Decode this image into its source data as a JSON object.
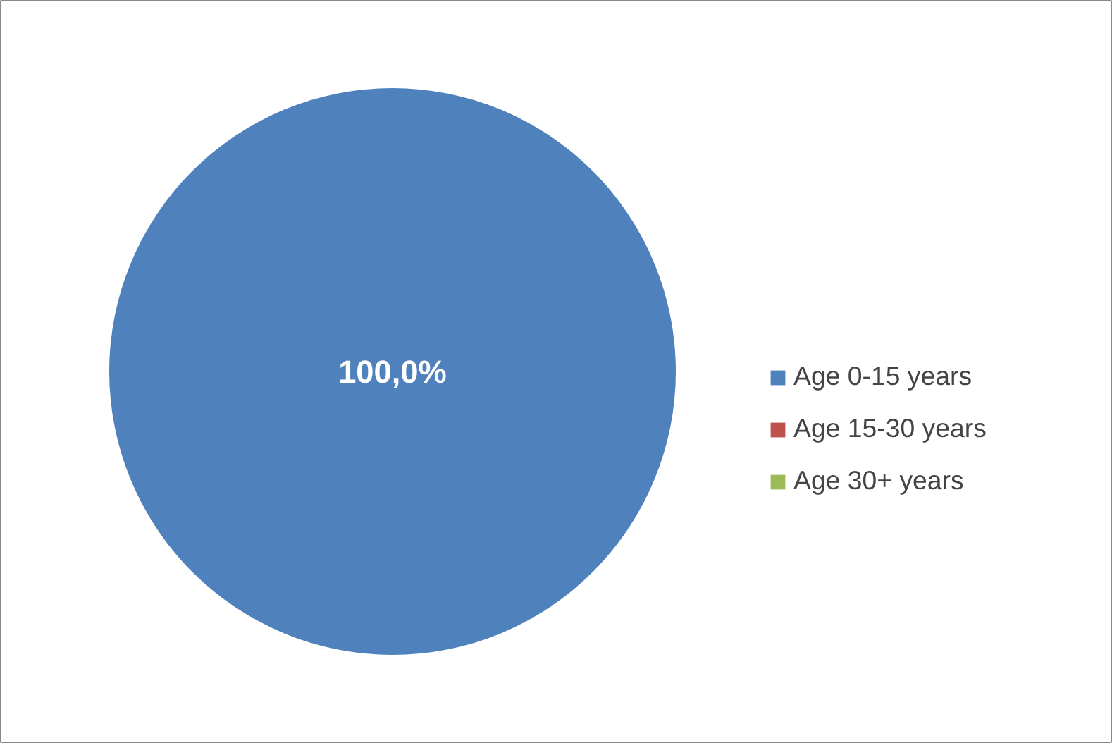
{
  "chart_data": {
    "type": "pie",
    "categories": [
      "Age 0-15 years",
      "Age 15-30 years",
      "Age 30+ years"
    ],
    "values": [
      100,
      0,
      0
    ],
    "colors": [
      "#4f81bd",
      "#c0504d",
      "#9bbb59"
    ],
    "value_labels": [
      "100,0%",
      null,
      null
    ],
    "legend": "right"
  }
}
